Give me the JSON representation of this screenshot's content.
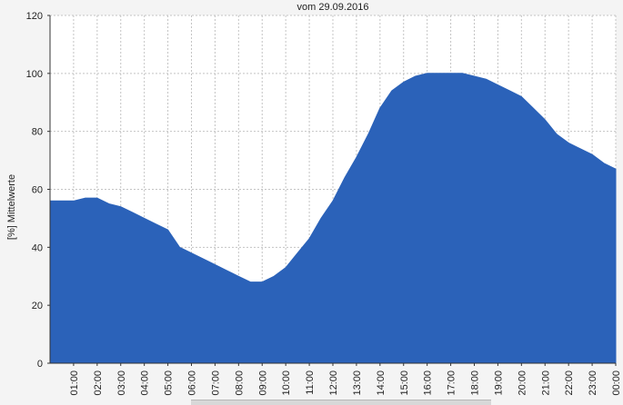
{
  "chart_data": {
    "type": "area",
    "title": "vom 29.09.2016",
    "xlabel": "",
    "ylabel": "[%] Mittelwerte",
    "ylim": [
      0,
      120
    ],
    "yticks": [
      0,
      20,
      40,
      60,
      80,
      100,
      120
    ],
    "xlim": [
      0,
      24
    ],
    "x_tick_labels": [
      "01:00",
      "02:00",
      "03:00",
      "04:00",
      "05:00",
      "06:00",
      "07:00",
      "08:00",
      "09:00",
      "10:00",
      "11:00",
      "12:00",
      "13:00",
      "14:00",
      "15:00",
      "16:00",
      "17:00",
      "18:00",
      "19:00",
      "20:00",
      "21:00",
      "22:00",
      "23:00",
      "00:00"
    ],
    "grid": true,
    "fill_color": "#2b62b9",
    "series": [
      {
        "x": [
          "00:00",
          "00:30",
          "01:00",
          "01:30",
          "02:00",
          "02:30",
          "03:00",
          "03:30",
          "04:00",
          "04:30",
          "05:00",
          "05:30",
          "06:00",
          "06:30",
          "07:00",
          "07:30",
          "08:00",
          "08:30",
          "09:00",
          "09:30",
          "10:00",
          "10:30",
          "11:00",
          "11:30",
          "12:00",
          "12:30",
          "13:00",
          "13:30",
          "14:00",
          "14:30",
          "15:00",
          "15:30",
          "16:00",
          "16:30",
          "17:00",
          "17:30",
          "18:00",
          "18:30",
          "19:00",
          "19:30",
          "20:00",
          "20:30",
          "21:00",
          "21:30",
          "22:00",
          "22:30",
          "23:00",
          "23:30",
          "00:00"
        ],
        "values": [
          56,
          56,
          56,
          57,
          57,
          55,
          54,
          52,
          50,
          48,
          46,
          40,
          38,
          36,
          34,
          32,
          30,
          28,
          28,
          30,
          33,
          38,
          43,
          50,
          56,
          64,
          71,
          79,
          88,
          94,
          97,
          99,
          100,
          100,
          100,
          100,
          99,
          98,
          96,
          94,
          92,
          88,
          84,
          79,
          76,
          74,
          72,
          69,
          67
        ]
      }
    ]
  }
}
